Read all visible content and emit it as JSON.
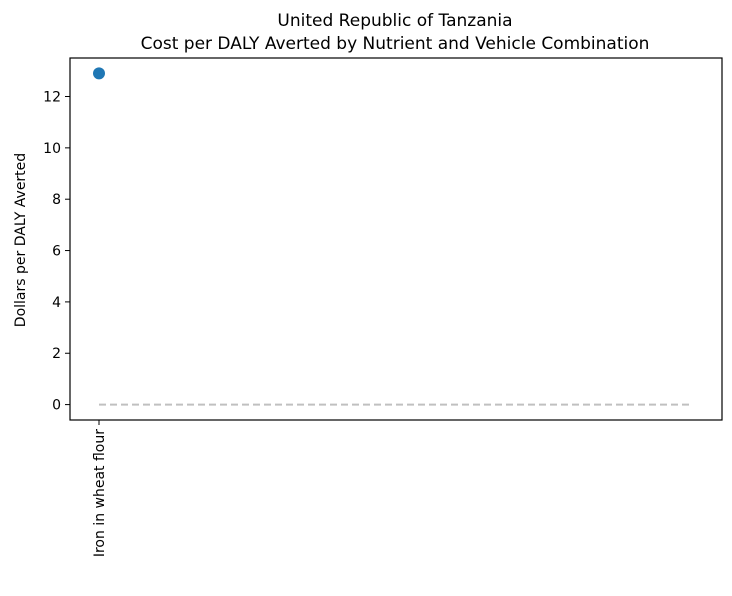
{
  "chart_data": {
    "type": "scatter",
    "title": "United Republic of Tanzania",
    "subtitle": "Cost per DALY Averted by Nutrient and Vehicle Combination",
    "xlabel": "",
    "ylabel": "Dollars per DALY Averted",
    "categories": [
      "Iron in wheat flour"
    ],
    "values": [
      12.9
    ],
    "ylim": [
      -0.6,
      13.5
    ],
    "yticks": [
      0,
      2,
      4,
      6,
      8,
      10,
      12
    ],
    "reference_line": {
      "y": 0,
      "style": "dashed",
      "color": "#c0c0c0"
    },
    "point_color": "#1f77b4",
    "grid": false
  }
}
